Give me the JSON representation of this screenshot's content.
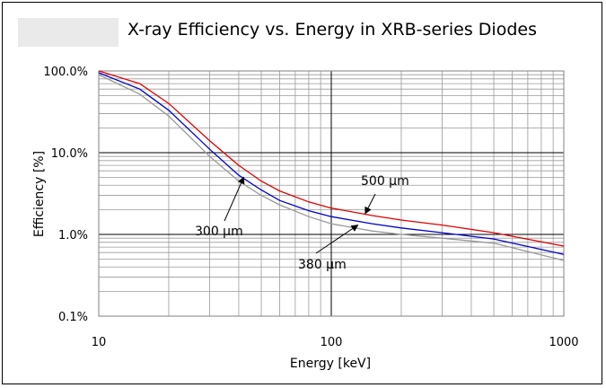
{
  "chart_data": {
    "type": "line",
    "title": "X-ray Efficiency vs. Energy in XRB-series Diodes",
    "xlabel": "Energy [keV]",
    "ylabel": "Efficiency [%]",
    "xscale": "log",
    "yscale": "log",
    "xlim": [
      10,
      1000
    ],
    "ylim": [
      0.1,
      100
    ],
    "grid": true,
    "legend": "none",
    "xticks": [
      {
        "v": 10,
        "label": "10"
      },
      {
        "v": 100,
        "label": "100"
      },
      {
        "v": 1000,
        "label": "1000"
      }
    ],
    "yticks": [
      {
        "v": 100,
        "label": "100.0%"
      },
      {
        "v": 10,
        "label": "10.0%"
      },
      {
        "v": 1,
        "label": "1.0%"
      },
      {
        "v": 0.1,
        "label": "0.1%"
      }
    ],
    "series": [
      {
        "name": "500 µm",
        "color": "#e00000",
        "x": [
          10,
          15,
          20,
          30,
          40,
          50,
          60,
          80,
          100,
          150,
          200,
          300,
          500,
          1000
        ],
        "y": [
          100,
          70,
          40,
          14,
          7,
          4.5,
          3.4,
          2.5,
          2.1,
          1.7,
          1.5,
          1.3,
          1.05,
          0.72
        ]
      },
      {
        "name": "380 µm",
        "color": "#0000cc",
        "x": [
          10,
          15,
          20,
          30,
          40,
          50,
          60,
          80,
          100,
          150,
          200,
          300,
          500,
          1000
        ],
        "y": [
          95,
          60,
          33,
          11,
          5.3,
          3.5,
          2.6,
          1.95,
          1.65,
          1.35,
          1.2,
          1.05,
          0.88,
          0.57
        ]
      },
      {
        "name": "300 µm",
        "color": "#999999",
        "x": [
          10,
          15,
          20,
          30,
          40,
          50,
          60,
          80,
          100,
          150,
          200,
          300,
          500,
          1000
        ],
        "y": [
          90,
          52,
          28,
          9,
          4.5,
          3,
          2.3,
          1.65,
          1.35,
          1.1,
          1,
          0.9,
          0.78,
          0.48
        ]
      }
    ],
    "annotations": [
      {
        "text": "500 µm",
        "series": "500 µm",
        "target": [
          140,
          1.8
        ]
      },
      {
        "text": "380 µm",
        "series": "380 µm",
        "target": [
          130,
          1.3
        ]
      },
      {
        "text": "300 µm",
        "series": "300 µm",
        "target": [
          42,
          5
        ]
      }
    ]
  }
}
